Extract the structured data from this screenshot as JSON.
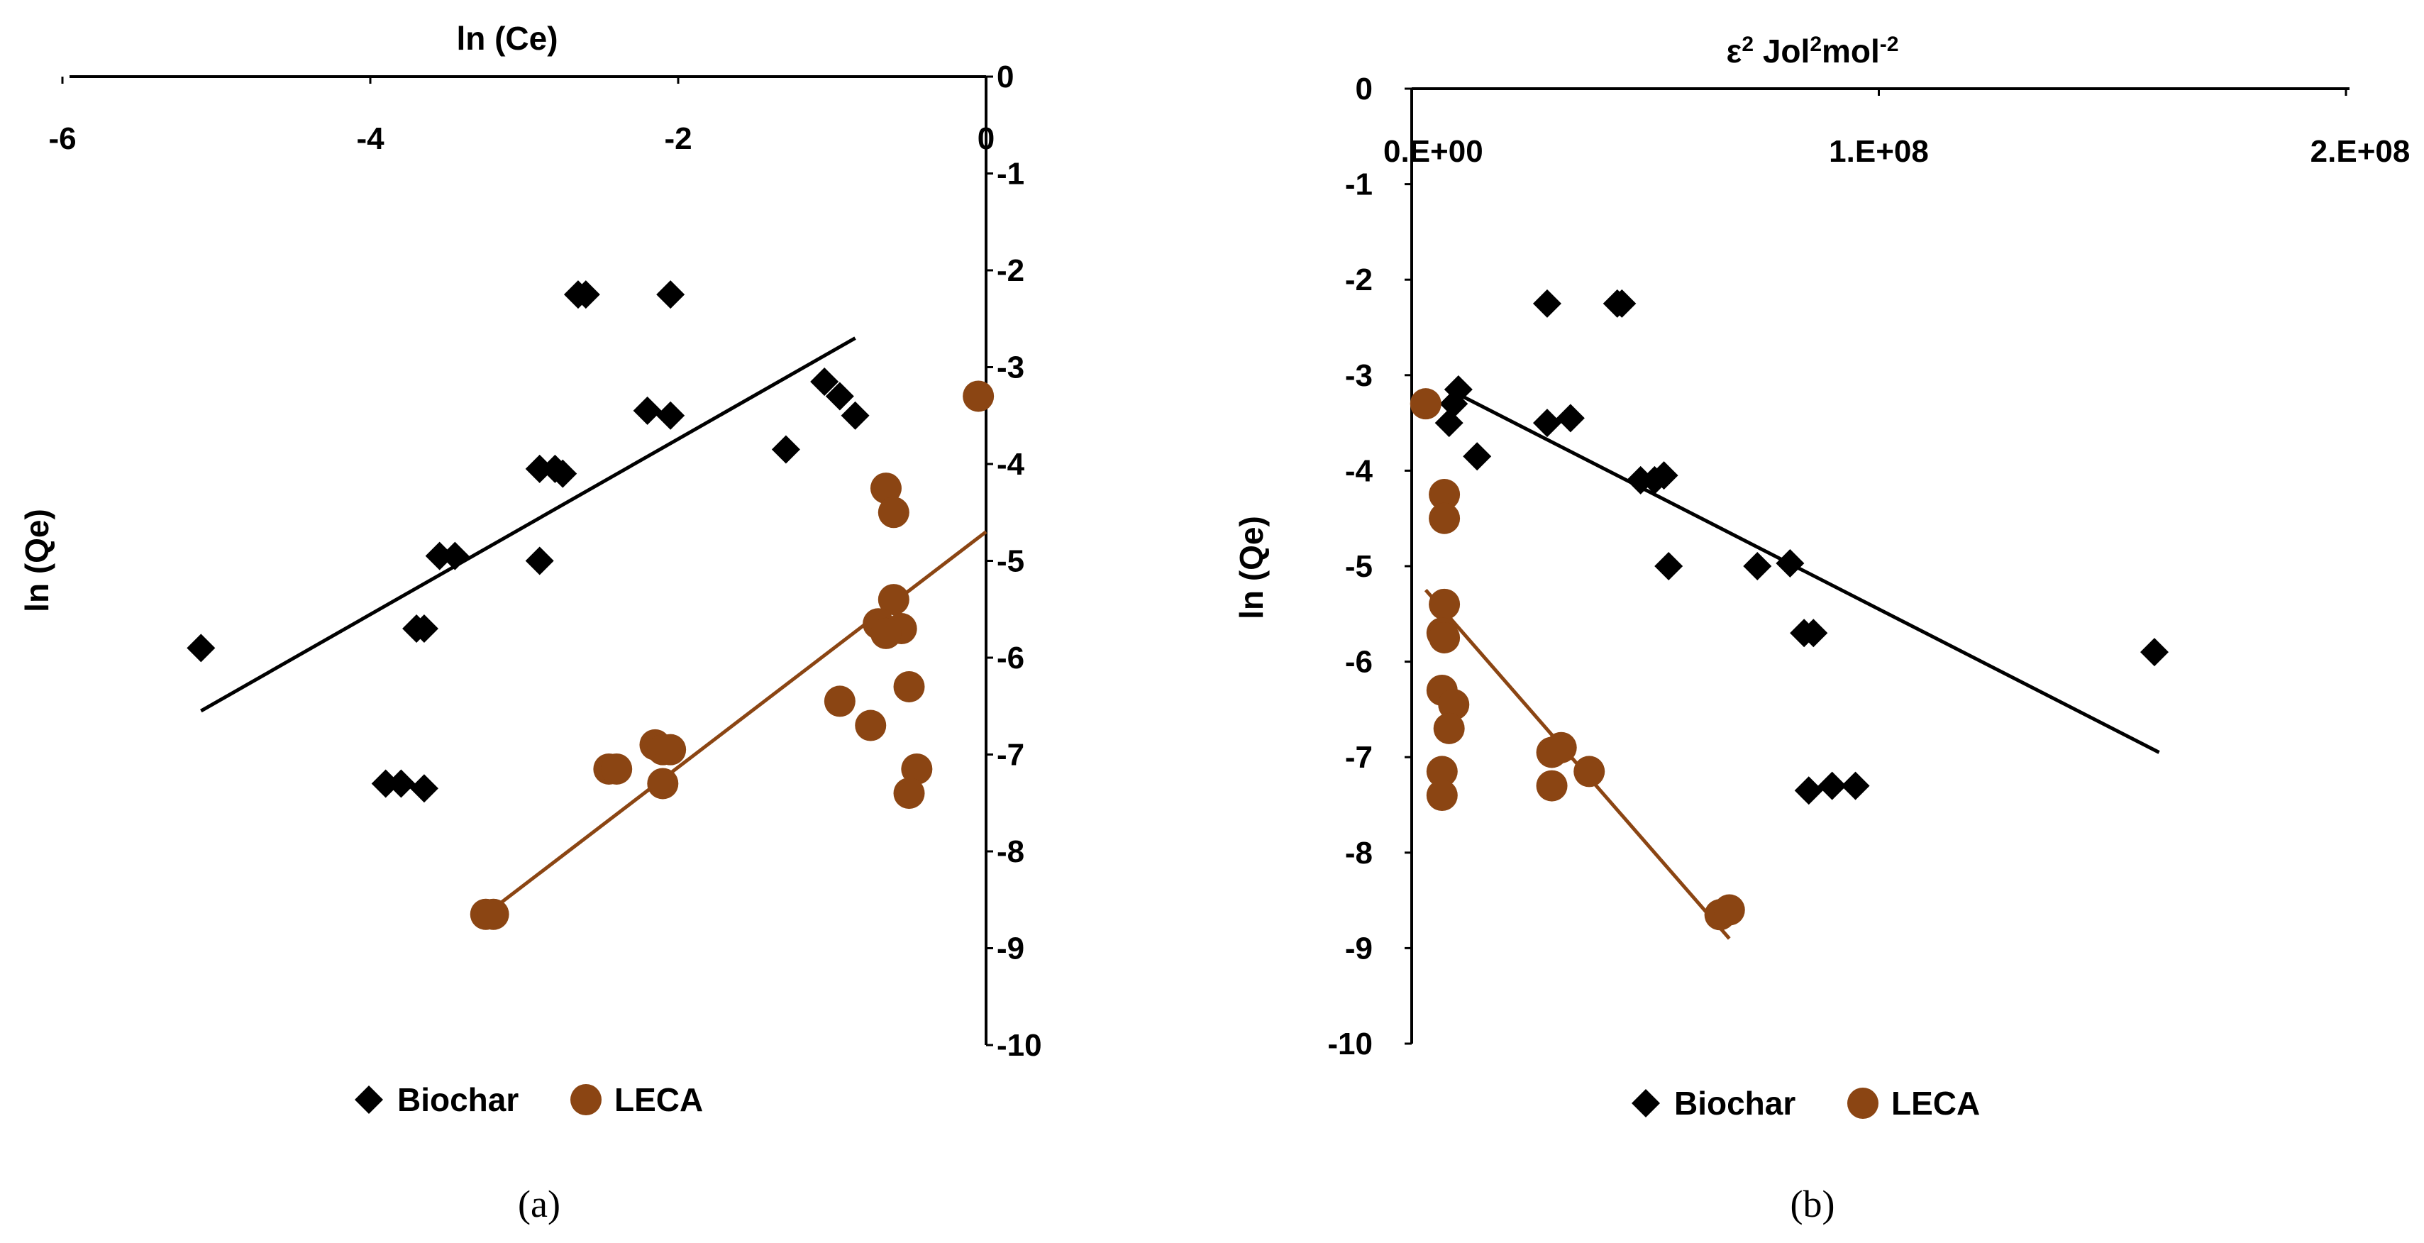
{
  "chart_data": [
    {
      "type": "scatter",
      "panel_label": "(a)",
      "xlabel": "ln (Ce)",
      "ylabel": "ln (Qe)",
      "xlim": [
        -6,
        0
      ],
      "ylim": [
        -10,
        0
      ],
      "x_ticks": [
        -6,
        -4,
        -2,
        0
      ],
      "x_tick_labels": [
        "-6",
        "-4",
        "-2",
        "0"
      ],
      "y_ticks": [
        0,
        -1,
        -2,
        -3,
        -4,
        -5,
        -6,
        -7,
        -8,
        -9,
        -10
      ],
      "y_tick_labels": [
        "0",
        "-1",
        "-2",
        "-3",
        "-4",
        "-5",
        "-6",
        "-7",
        "-8",
        "-9",
        "-10"
      ],
      "axis_position": "x axis at top (y = 0), y axis at right (x = 0)",
      "series": [
        {
          "name": "Biochar",
          "marker": "diamond",
          "color": "#000000",
          "points": [
            [
              -5.1,
              -5.9
            ],
            [
              -3.55,
              -4.95
            ],
            [
              -3.45,
              -4.95
            ],
            [
              -3.7,
              -5.7
            ],
            [
              -3.65,
              -5.7
            ],
            [
              -3.9,
              -7.3
            ],
            [
              -3.8,
              -7.3
            ],
            [
              -3.65,
              -7.35
            ],
            [
              -2.9,
              -4.05
            ],
            [
              -2.8,
              -4.05
            ],
            [
              -2.75,
              -4.1
            ],
            [
              -2.9,
              -5.0
            ],
            [
              -2.65,
              -2.25
            ],
            [
              -2.6,
              -2.25
            ],
            [
              -2.05,
              -2.25
            ],
            [
              -2.2,
              -3.45
            ],
            [
              -2.05,
              -3.5
            ],
            [
              -1.3,
              -3.85
            ],
            [
              -1.05,
              -3.15
            ],
            [
              -0.95,
              -3.3
            ],
            [
              -0.85,
              -3.5
            ]
          ],
          "trendline": [
            [
              -5.1,
              -6.55
            ],
            [
              -0.85,
              -2.7
            ]
          ]
        },
        {
          "name": "LECA",
          "marker": "circle",
          "color": "#8B4513",
          "points": [
            [
              -0.05,
              -3.3
            ],
            [
              -0.65,
              -4.25
            ],
            [
              -0.6,
              -4.5
            ],
            [
              -0.6,
              -5.4
            ],
            [
              -0.55,
              -5.7
            ],
            [
              -0.7,
              -5.65
            ],
            [
              -0.65,
              -5.75
            ],
            [
              -0.5,
              -6.3
            ],
            [
              -0.95,
              -6.45
            ],
            [
              -0.75,
              -6.7
            ],
            [
              -0.45,
              -7.15
            ],
            [
              -0.5,
              -7.4
            ],
            [
              -2.15,
              -6.9
            ],
            [
              -2.1,
              -6.95
            ],
            [
              -2.05,
              -6.95
            ],
            [
              -2.45,
              -7.15
            ],
            [
              -2.4,
              -7.15
            ],
            [
              -2.1,
              -7.3
            ],
            [
              -3.25,
              -8.65
            ],
            [
              -3.2,
              -8.65
            ]
          ],
          "trendline": [
            [
              -3.25,
              -8.65
            ],
            [
              0.0,
              -4.7
            ]
          ]
        }
      ],
      "legend": [
        "Biochar",
        "LECA"
      ],
      "legend_position": "bottom"
    },
    {
      "type": "scatter",
      "panel_label": "(b)",
      "xlabel": "ε² Jol²mol⁻²",
      "xlabel_parts": [
        "ε",
        "2",
        " Jol",
        "2",
        "mol",
        "-2"
      ],
      "ylabel": "ln (Qe)",
      "xlim": [
        0,
        200000000
      ],
      "ylim": [
        -10,
        0
      ],
      "x_ticks": [
        0,
        100000000,
        200000000
      ],
      "x_tick_labels": [
        "0.E+00",
        "1.E+08",
        "2.E+08"
      ],
      "y_ticks": [
        0,
        -1,
        -2,
        -3,
        -4,
        -5,
        -6,
        -7,
        -8,
        -9,
        -10
      ],
      "y_tick_labels": [
        "0",
        "-1",
        "-2",
        "-3",
        "-4",
        "-5",
        "-6",
        "-7",
        "-8",
        "-9",
        "-10"
      ],
      "axis_position": "x axis at top (y = 0), y axis at left (x = 0)",
      "series": [
        {
          "name": "Biochar",
          "marker": "diamond",
          "color": "#000000",
          "points": [
            [
              10000000,
              -3.15
            ],
            [
              9000000,
              -3.3
            ],
            [
              8000000,
              -3.5
            ],
            [
              14000000,
              -3.85
            ],
            [
              29000000,
              -2.25
            ],
            [
              44000000,
              -2.25
            ],
            [
              45000000,
              -2.25
            ],
            [
              29000000,
              -3.5
            ],
            [
              34000000,
              -3.45
            ],
            [
              49000000,
              -4.1
            ],
            [
              52000000,
              -4.1
            ],
            [
              54000000,
              -4.05
            ],
            [
              55000000,
              -5.0
            ],
            [
              74000000,
              -5.0
            ],
            [
              81000000,
              -4.97
            ],
            [
              84000000,
              -5.7
            ],
            [
              86000000,
              -5.7
            ],
            [
              85000000,
              -7.35
            ],
            [
              90000000,
              -7.3
            ],
            [
              95000000,
              -7.3
            ],
            [
              159000000,
              -5.9
            ]
          ],
          "trendline": [
            [
              8000000,
              -3.15
            ],
            [
              160000000,
              -6.95
            ]
          ]
        },
        {
          "name": "LECA",
          "marker": "circle",
          "color": "#8B4513",
          "points": [
            [
              3000000,
              -3.3
            ],
            [
              7000000,
              -4.25
            ],
            [
              7000000,
              -4.5
            ],
            [
              7000000,
              -5.4
            ],
            [
              6500000,
              -5.7
            ],
            [
              7000000,
              -5.75
            ],
            [
              6500000,
              -6.3
            ],
            [
              9000000,
              -6.45
            ],
            [
              8000000,
              -6.7
            ],
            [
              6500000,
              -7.15
            ],
            [
              6500000,
              -7.4
            ],
            [
              30000000,
              -6.95
            ],
            [
              32000000,
              -6.9
            ],
            [
              38000000,
              -7.15
            ],
            [
              30000000,
              -7.3
            ],
            [
              66000000,
              -8.65
            ],
            [
              68000000,
              -8.6
            ]
          ],
          "trendline": [
            [
              3000000,
              -5.25
            ],
            [
              68000000,
              -8.9
            ]
          ]
        }
      ],
      "legend": [
        "Biochar",
        "LECA"
      ],
      "legend_position": "bottom"
    }
  ]
}
